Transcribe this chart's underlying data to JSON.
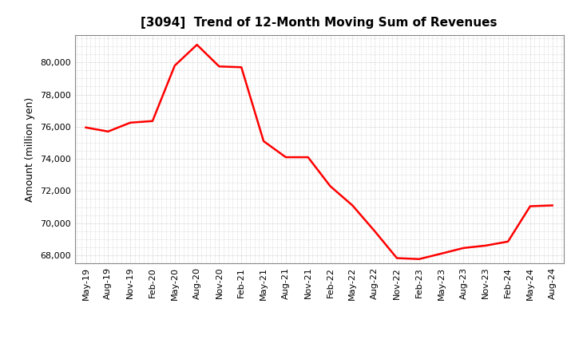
{
  "title": "[3094]  Trend of 12-Month Moving Sum of Revenues",
  "ylabel": "Amount (million yen)",
  "line_color": "#FF0000",
  "background_color": "#FFFFFF",
  "grid_color": "#BBBBBB",
  "ylim": [
    67500,
    81700
  ],
  "yticks": [
    68000,
    70000,
    72000,
    74000,
    76000,
    78000,
    80000
  ],
  "x_labels": [
    "May-19",
    "Aug-19",
    "Nov-19",
    "Feb-20",
    "May-20",
    "Aug-20",
    "Nov-20",
    "Feb-21",
    "May-21",
    "Aug-21",
    "Nov-21",
    "Feb-22",
    "May-22",
    "Aug-22",
    "Nov-22",
    "Feb-23",
    "May-23",
    "Aug-23",
    "Nov-23",
    "Feb-24",
    "May-24",
    "Aug-24"
  ],
  "values": [
    75950,
    75700,
    76250,
    76350,
    79800,
    81100,
    79750,
    79700,
    75100,
    74100,
    74100,
    72300,
    71100,
    69500,
    67820,
    67760,
    68100,
    68450,
    68600,
    68850,
    71050,
    71100
  ],
  "title_fontsize": 11,
  "axis_label_fontsize": 9,
  "tick_fontsize": 8
}
